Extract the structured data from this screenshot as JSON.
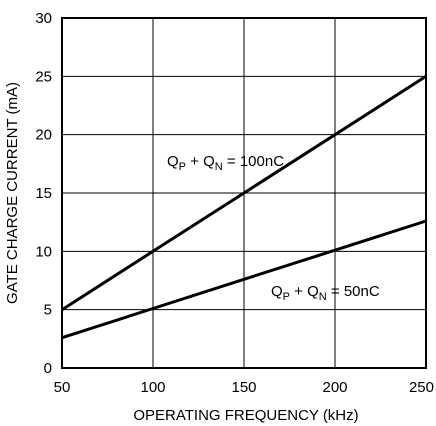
{
  "chart_data": {
    "type": "line",
    "xlabel": "OPERATING FREQUENCY (kHz)",
    "ylabel": "GATE CHARGE CURRENT (mA)",
    "xlim": [
      50,
      250
    ],
    "ylim": [
      0,
      30
    ],
    "xticks": [
      "50",
      "100",
      "150",
      "200",
      "250"
    ],
    "yticks": [
      "0",
      "5",
      "10",
      "15",
      "20",
      "25",
      "30"
    ],
    "grid": true,
    "series": [
      {
        "name": "QP + QN = 100nC",
        "x": [
          50,
          100,
          150,
          200,
          250
        ],
        "y": [
          5,
          10,
          15,
          20,
          25
        ]
      },
      {
        "name": "QP + QN = 50nC",
        "x": [
          50,
          100,
          150,
          200,
          250
        ],
        "y": [
          2.6,
          5.1,
          7.6,
          10.1,
          12.6
        ]
      }
    ],
    "annotations": [
      {
        "main1": "Q",
        "sub1": "P",
        "mid": " + Q",
        "sub2": "N",
        "tail": " = 100nC"
      },
      {
        "main1": "Q",
        "sub1": "P",
        "mid": " + Q",
        "sub2": "N",
        "tail": " = 50nC"
      }
    ]
  }
}
